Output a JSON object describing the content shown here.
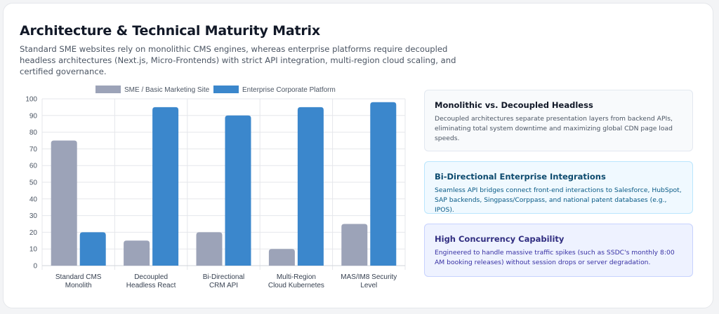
{
  "header": {
    "title": "Architecture & Technical Maturity Matrix",
    "subtitle": "Standard SME websites rely on monolithic CMS engines, whereas enterprise platforms require decoupled headless architectures (Next.js, Micro-Frontends) with strict API integration, multi-region cloud scaling, and certified governance."
  },
  "chart_data": {
    "type": "bar",
    "categories": [
      [
        "Standard CMS",
        "Monolith"
      ],
      [
        "Decoupled",
        "Headless React"
      ],
      [
        "Bi-Directional",
        "CRM API"
      ],
      [
        "Multi-Region",
        "Cloud Kubernetes"
      ],
      [
        "MAS/IM8 Security",
        "Level"
      ]
    ],
    "series": [
      {
        "name": "SME / Basic Marketing Site",
        "values": [
          75,
          15,
          20,
          10,
          25
        ],
        "color": "#9ca3b8"
      },
      {
        "name": "Enterprise Corporate Platform",
        "values": [
          20,
          95,
          90,
          95,
          98
        ],
        "color": "#3b87cc"
      }
    ],
    "ylim": [
      0,
      100
    ],
    "yticks": [
      0,
      10,
      20,
      30,
      40,
      50,
      60,
      70,
      80,
      90,
      100
    ],
    "grid": true,
    "legend_position": "top"
  },
  "cards": [
    {
      "title": "Monolithic vs. Decoupled Headless",
      "text": "Decoupled architectures separate presentation layers from backend APIs, eliminating total system downtime and maximizing global CDN page load speeds."
    },
    {
      "title": "Bi-Directional Enterprise Integrations",
      "text": "Seamless API bridges connect front-end interactions to Salesforce, HubSpot, SAP backends, Singpass/Corppass, and national patent databases (e.g., IPOS)."
    },
    {
      "title": "High Concurrency Capability",
      "text": "Engineered to handle massive traffic spikes (such as SSDC's monthly 8:00 AM booking releases) without session drops or server degradation."
    }
  ]
}
